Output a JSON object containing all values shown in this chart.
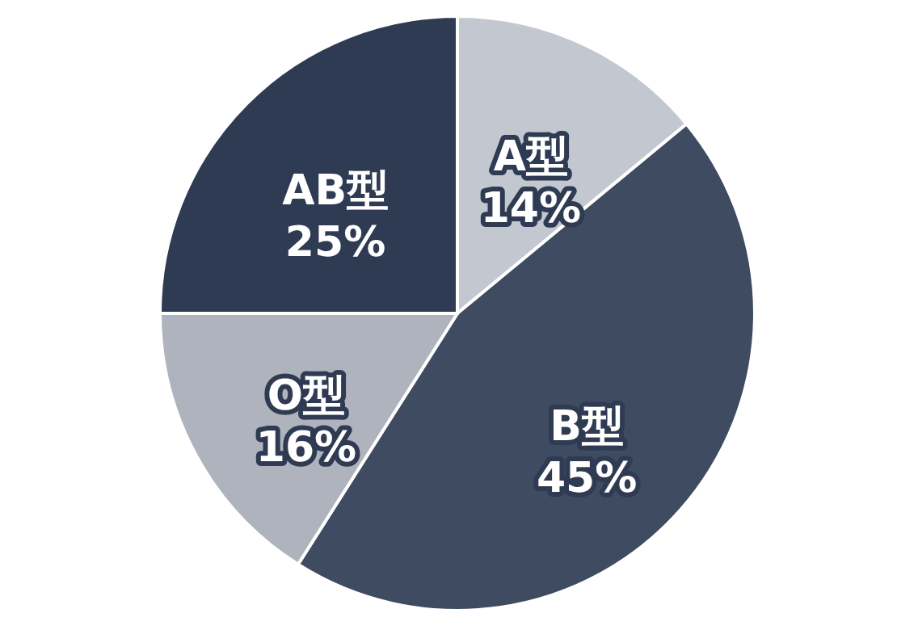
{
  "chart_data": {
    "type": "pie",
    "categories": [
      "A型",
      "B型",
      "O型",
      "AB型"
    ],
    "values": [
      14,
      45,
      16,
      25
    ],
    "value_labels": [
      "14%",
      "45%",
      "16%",
      "25%"
    ],
    "colors": [
      "#c3c7cf",
      "#3f4b61",
      "#aeb3bd",
      "#2f3b52"
    ]
  }
}
